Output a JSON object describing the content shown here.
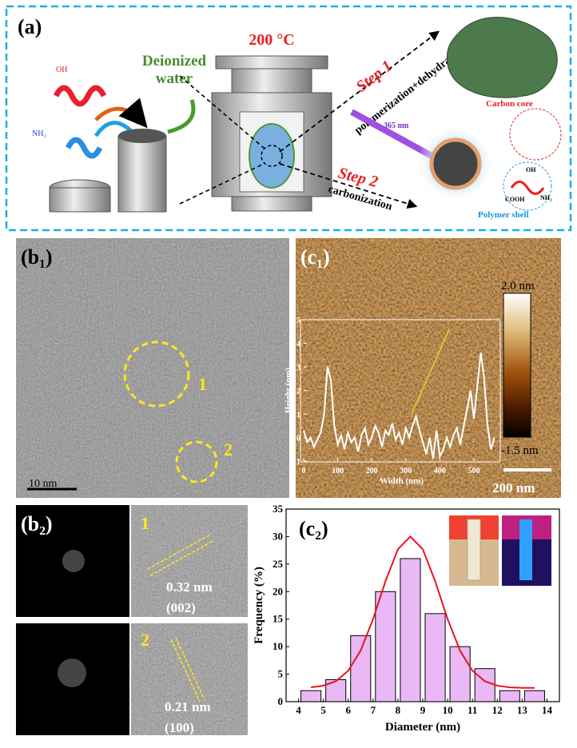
{
  "panel_a": {
    "label": "(a)",
    "temperature": "200 °C",
    "solvent": [
      "Deionized",
      "water"
    ],
    "step1": "Step 1",
    "step1_process": "polymerization+dehydration",
    "step2": "Step 2",
    "step2_process": "carbonization",
    "core": "Carbon core",
    "wavelength": "365 nm",
    "shell": "Polymer shell",
    "groups": [
      "OH",
      "COOH",
      "NH₂"
    ]
  },
  "panel_b1": {
    "label": "(b₁)",
    "markers": [
      "1",
      "2"
    ],
    "scale_bar": "10 nm"
  },
  "panel_b2": {
    "label": "(b₂)",
    "regions": [
      {
        "marker": "1",
        "spacing": "0.32 nm",
        "plane": "(002)"
      },
      {
        "marker": "2",
        "spacing": "0.21 nm",
        "plane": "(100)"
      }
    ]
  },
  "panel_c1": {
    "label": "(c₁)",
    "colorbar": [
      "2.0 nm",
      "-1.5 nm"
    ],
    "scale_bar": "200 nm"
  },
  "panel_c2": {
    "label": "(c₂)"
  },
  "chart_data": [
    {
      "type": "line",
      "xlabel": "Width (nm)",
      "ylabel": "Height (nm)",
      "x": [
        0,
        10,
        20,
        30,
        40,
        50,
        60,
        70,
        80,
        90,
        100,
        110,
        120,
        130,
        140,
        150,
        160,
        170,
        180,
        190,
        200,
        210,
        220,
        230,
        240,
        250,
        260,
        270,
        280,
        290,
        300,
        310,
        320,
        330,
        340,
        350,
        360,
        370,
        380,
        390,
        400,
        410,
        420,
        430,
        440,
        450,
        460,
        470,
        480,
        490,
        500,
        510,
        520,
        530,
        540,
        550,
        560
      ],
      "values": [
        0.3,
        -0.2,
        0.0,
        -0.4,
        -0.1,
        0.2,
        1.0,
        3.0,
        2.4,
        0.5,
        -0.3,
        0.1,
        -0.5,
        0.2,
        -0.2,
        0.0,
        -0.6,
        0.1,
        0.4,
        -0.3,
        0.0,
        0.5,
        0.2,
        -0.4,
        0.3,
        0.1,
        0.6,
        -0.1,
        0.2,
        -0.3,
        0.4,
        0.0,
        0.5,
        0.9,
        0.3,
        -0.2,
        -0.7,
        0.0,
        -0.9,
        0.3,
        -0.8,
        -0.5,
        0.0,
        -0.4,
        0.1,
        0.4,
        -0.3,
        0.5,
        1.2,
        2.0,
        0.8,
        2.2,
        3.6,
        2.5,
        0.5,
        -0.5,
        0.0
      ],
      "color": "#ffffff",
      "xlim": [
        0,
        575
      ],
      "ylim": [
        -1,
        5
      ],
      "xticks": [
        0,
        100,
        200,
        300,
        400,
        500
      ],
      "yticks": [
        -1,
        0,
        1,
        2,
        3,
        4,
        5
      ]
    },
    {
      "type": "histogram",
      "xlabel": "Diameter (nm)",
      "ylabel": "Frequency (%)",
      "bins": [
        4,
        5,
        6,
        7,
        8,
        9,
        10,
        11,
        12,
        13,
        14
      ],
      "values": [
        2,
        4,
        12,
        20,
        26,
        16,
        10,
        6,
        2,
        2
      ],
      "color": "#e9b8f5",
      "fit": {
        "x": [
          4.5,
          5,
          5.5,
          6,
          6.5,
          7,
          7.5,
          8,
          8.5,
          9,
          9.5,
          10,
          10.5,
          11,
          11.5,
          12,
          12.5,
          13,
          13.5
        ],
        "values": [
          2.6,
          2.9,
          3.7,
          5.6,
          9.3,
          15.0,
          21.9,
          27.7,
          30.0,
          27.7,
          21.9,
          15.0,
          9.3,
          5.6,
          3.7,
          2.9,
          2.6,
          2.5,
          2.5
        ],
        "color": "#e8141b"
      },
      "xlim": [
        3.5,
        14.5
      ],
      "ylim": [
        0,
        35
      ],
      "xticks": [
        4,
        5,
        6,
        7,
        8,
        9,
        10,
        11,
        12,
        13,
        14
      ],
      "yticks": [
        0,
        5,
        10,
        15,
        20,
        25,
        30,
        35
      ]
    }
  ]
}
